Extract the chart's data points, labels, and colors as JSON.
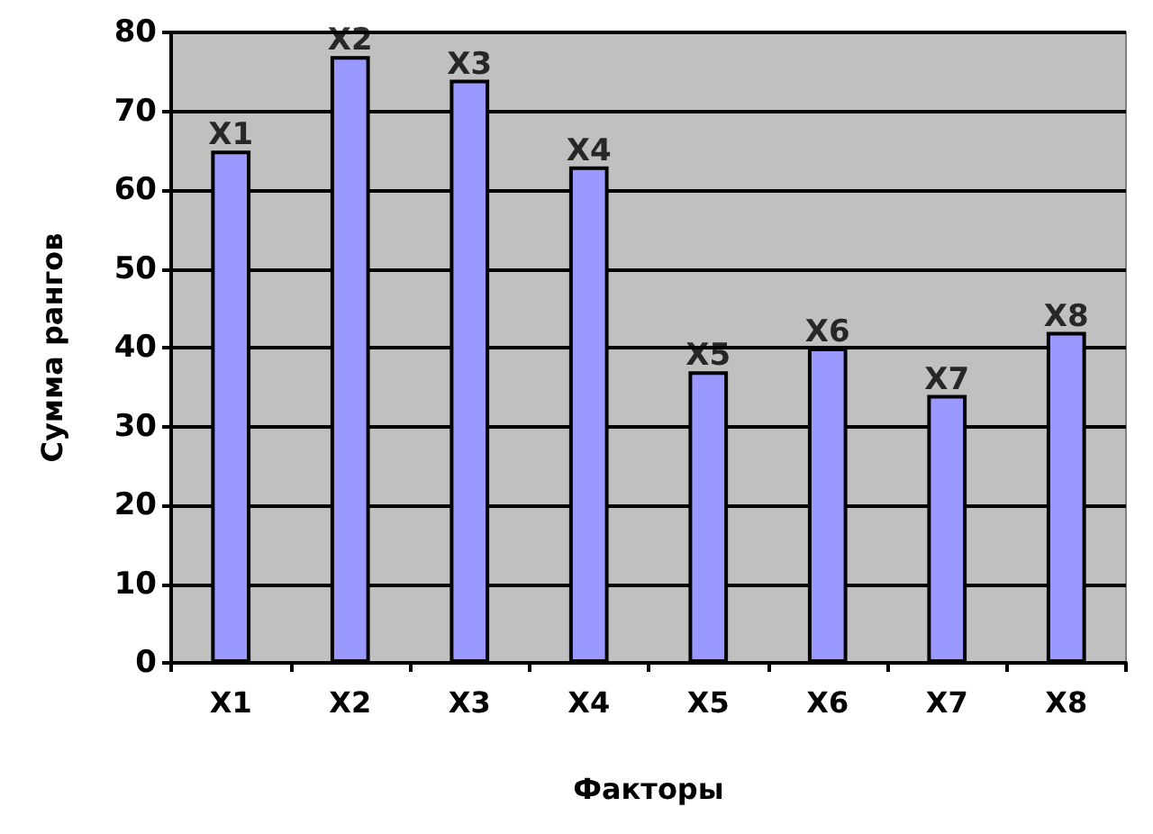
{
  "chart_data": {
    "type": "bar",
    "xlabel": "Факторы",
    "ylabel": "Сумма рангов",
    "categories": [
      "X1",
      "X2",
      "X3",
      "X4",
      "X5",
      "X6",
      "X7",
      "X8"
    ],
    "values": [
      65,
      77,
      74,
      63,
      37,
      40,
      34,
      42
    ],
    "color": "#9999ff",
    "ylim": [
      0,
      80
    ],
    "yticks": [
      0,
      10,
      20,
      30,
      40,
      50,
      60,
      70,
      80
    ],
    "grid": "y",
    "annotations": [
      {
        "text": "X1",
        "x": "X1",
        "y": 65
      },
      {
        "text": "X2",
        "x": "X2",
        "y": 77
      },
      {
        "text": "X3",
        "x": "X3",
        "y": 74
      },
      {
        "text": "X4",
        "x": "X4",
        "y": 63
      },
      {
        "text": "X5",
        "x": "X5",
        "y": 37
      },
      {
        "text": "X6",
        "x": "X6",
        "y": 40
      },
      {
        "text": "X7",
        "x": "X7",
        "y": 34
      },
      {
        "text": "X8",
        "x": "X8",
        "y": 42
      }
    ]
  }
}
